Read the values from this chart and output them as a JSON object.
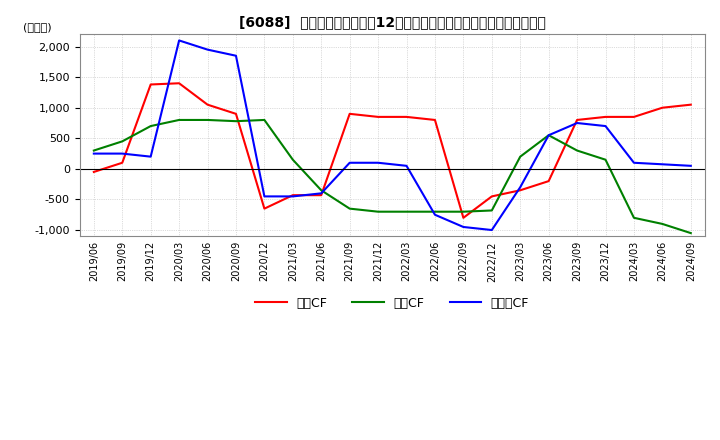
{
  "title": "[6088]  キャッシュフローの12か月移動合計の対前年同期増減額の推移",
  "ylabel": "(百万円)",
  "ylim": [
    -1100,
    2200
  ],
  "yticks": [
    -1000,
    -500,
    0,
    500,
    1000,
    1500,
    2000
  ],
  "legend_labels": [
    "営業CF",
    "投資CF",
    "フリーCF"
  ],
  "legend_colors": [
    "#ff0000",
    "#008000",
    "#0000ff"
  ],
  "x_labels": [
    "2019/06",
    "2019/09",
    "2019/12",
    "2020/03",
    "2020/06",
    "2020/09",
    "2020/12",
    "2021/03",
    "2021/06",
    "2021/09",
    "2021/12",
    "2022/03",
    "2022/06",
    "2022/09",
    "2022/12",
    "2023/03",
    "2023/06",
    "2023/09",
    "2023/12",
    "2024/03",
    "2024/06",
    "2024/09"
  ],
  "operating_cf": [
    -50,
    100,
    1380,
    1400,
    1050,
    900,
    -650,
    -430,
    -430,
    900,
    850,
    850,
    800,
    -800,
    -450,
    -350,
    -200,
    800,
    850,
    850,
    1000,
    1050
  ],
  "investing_cf": [
    300,
    450,
    700,
    800,
    800,
    780,
    800,
    150,
    -350,
    -650,
    -700,
    -700,
    -700,
    -700,
    -680,
    200,
    550,
    300,
    150,
    -800,
    -900,
    -1050
  ],
  "free_cf": [
    250,
    250,
    200,
    2100,
    1950,
    1850,
    -450,
    -450,
    -400,
    100,
    100,
    50,
    -750,
    -950,
    -1000,
    -300,
    550,
    750,
    700,
    100,
    75,
    50
  ],
  "background_color": "#ffffff",
  "grid_color": "#bbbbbb",
  "line_width": 1.5
}
